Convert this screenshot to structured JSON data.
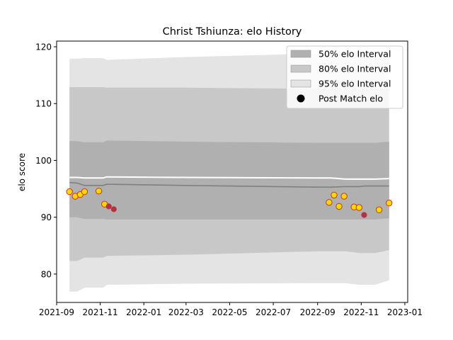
{
  "chart_data": {
    "type": "line",
    "title": "Christ Tshiunza: elo History",
    "xlabel": "",
    "ylabel": "elo score",
    "x_axis": "date",
    "xlim": [
      "2021-09-01",
      "2023-01-05"
    ],
    "ylim": [
      75,
      121
    ],
    "x_ticks": [
      "2021-09",
      "2021-11",
      "2022-01",
      "2022-03",
      "2022-05",
      "2022-07",
      "2022-09",
      "2022-11",
      "2023-01"
    ],
    "y_ticks": [
      80,
      90,
      100,
      110,
      120
    ],
    "grid": false,
    "legend_position": "top-right",
    "legend": [
      "50% elo Interval",
      "80% elo Interval",
      "95% elo Interval",
      "Post Match elo"
    ],
    "colors": {
      "band_50": "#b0b0b0",
      "band_80": "#c8c8c8",
      "band_95": "#e4e4e4",
      "median_line": "#808080",
      "mean_line": "#ffffff",
      "marker_edge": "#c0392b",
      "marker_fill_primary": "#ffd700",
      "marker_fill_dark": "#b03050"
    },
    "bands": [
      {
        "name": "95% elo Interval",
        "x": [
          "2021-09-19",
          "2021-09-30",
          "2021-10-10",
          "2021-10-25",
          "2021-11-05",
          "2021-11-10",
          "2022-03-01",
          "2022-09-01",
          "2022-09-20",
          "2022-10-10",
          "2022-10-30",
          "2022-11-05",
          "2022-11-20",
          "2022-12-10"
        ],
        "upper": [
          117.9,
          117.9,
          118.0,
          118.0,
          118.0,
          117.7,
          118.2,
          118.8,
          118.8,
          118.8,
          118.8,
          118.8,
          118.8,
          118.9
        ],
        "lower": [
          76.9,
          76.9,
          77.6,
          77.6,
          77.6,
          78.1,
          78.3,
          78.4,
          78.4,
          78.4,
          78.1,
          78.1,
          78.1,
          78.9
        ]
      },
      {
        "name": "80% elo Interval",
        "x": [
          "2021-09-19",
          "2021-09-30",
          "2021-10-10",
          "2021-10-25",
          "2021-11-05",
          "2021-11-10",
          "2022-03-01",
          "2022-09-01",
          "2022-09-20",
          "2022-10-10",
          "2022-10-30",
          "2022-11-05",
          "2022-11-20",
          "2022-12-10"
        ],
        "upper": [
          112.9,
          112.9,
          112.9,
          112.9,
          112.9,
          112.8,
          112.8,
          112.6,
          112.6,
          112.6,
          112.5,
          112.5,
          112.5,
          112.6
        ],
        "lower": [
          82.3,
          82.3,
          82.9,
          82.9,
          82.9,
          83.2,
          83.4,
          84.0,
          84.0,
          84.0,
          83.7,
          83.7,
          83.7,
          84.2
        ]
      },
      {
        "name": "50% elo Interval",
        "x": [
          "2021-09-19",
          "2021-09-30",
          "2021-10-10",
          "2021-10-25",
          "2021-11-05",
          "2021-11-10",
          "2022-03-01",
          "2022-09-01",
          "2022-09-20",
          "2022-10-10",
          "2022-10-30",
          "2022-11-05",
          "2022-11-20",
          "2022-12-10"
        ],
        "upper": [
          103.4,
          103.4,
          103.2,
          103.2,
          103.2,
          103.5,
          103.3,
          103.1,
          103.1,
          103.1,
          103.1,
          103.1,
          103.1,
          103.3
        ],
        "lower": [
          90.0,
          90.0,
          89.7,
          89.7,
          89.7,
          89.6,
          89.6,
          89.6,
          89.6,
          89.6,
          89.6,
          89.6,
          89.6,
          89.8
        ]
      }
    ],
    "lines": [
      {
        "role": "median",
        "x": [
          "2021-09-19",
          "2021-09-30",
          "2021-10-10",
          "2021-10-25",
          "2021-11-05",
          "2021-11-10",
          "2022-03-01",
          "2022-09-01",
          "2022-09-20",
          "2022-10-10",
          "2022-10-30",
          "2022-11-05",
          "2022-11-20",
          "2022-12-10"
        ],
        "y": [
          96.1,
          96.0,
          95.6,
          95.6,
          95.6,
          95.8,
          95.6,
          95.3,
          95.3,
          95.4,
          95.4,
          95.5,
          95.5,
          95.5
        ]
      },
      {
        "role": "mean",
        "x": [
          "2021-09-19",
          "2021-09-30",
          "2021-10-10",
          "2021-10-25",
          "2021-11-05",
          "2021-11-10",
          "2022-03-01",
          "2022-09-01",
          "2022-09-20",
          "2022-10-10",
          "2022-10-30",
          "2022-11-05",
          "2022-11-20",
          "2022-12-10"
        ],
        "y": [
          97.0,
          97.0,
          96.9,
          96.9,
          96.9,
          97.1,
          97.0,
          96.9,
          96.9,
          96.7,
          96.7,
          96.7,
          96.7,
          96.8
        ]
      }
    ],
    "points": {
      "name": "Post Match elo",
      "x": [
        "2021-09-19",
        "2021-09-27",
        "2021-10-04",
        "2021-10-10",
        "2021-10-30",
        "2021-11-07",
        "2021-11-13",
        "2021-11-20",
        "2022-09-17",
        "2022-09-24",
        "2022-10-01",
        "2022-10-08",
        "2022-10-22",
        "2022-10-29",
        "2022-11-05",
        "2022-11-26",
        "2022-12-10"
      ],
      "y": [
        94.5,
        93.7,
        94.0,
        94.5,
        94.6,
        92.3,
        91.9,
        91.4,
        92.6,
        93.9,
        91.9,
        93.7,
        91.8,
        91.7,
        90.4,
        91.3,
        92.5
      ],
      "style": [
        "light",
        "light",
        "light",
        "light",
        "light",
        "light",
        "dark",
        "dark",
        "light",
        "light",
        "light",
        "light",
        "light",
        "light",
        "dark",
        "light",
        "light"
      ]
    }
  }
}
